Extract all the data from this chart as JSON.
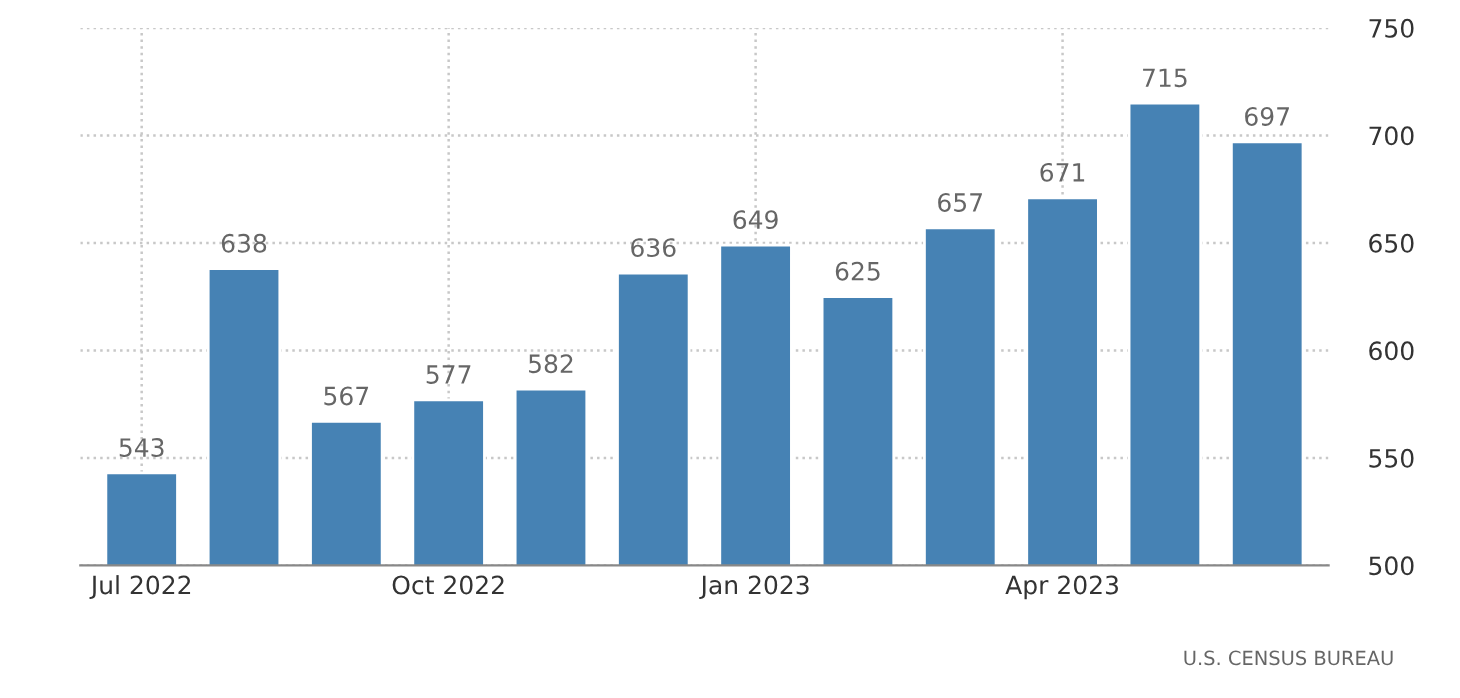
{
  "chart_data": {
    "type": "bar",
    "categories": [
      "Jul 2022",
      null,
      null,
      "Oct 2022",
      null,
      null,
      "Jan 2023",
      null,
      null,
      "Apr 2023",
      null,
      null
    ],
    "values": [
      543,
      638,
      567,
      577,
      582,
      636,
      649,
      625,
      657,
      671,
      715,
      697
    ],
    "color": "#4682b4",
    "data_labels": true,
    "ylim": [
      500,
      750
    ],
    "yticks": [
      500,
      550,
      600,
      650,
      700,
      750
    ],
    "grid": true,
    "annotations": [
      "U.S. CENSUS BUREAU"
    ]
  }
}
